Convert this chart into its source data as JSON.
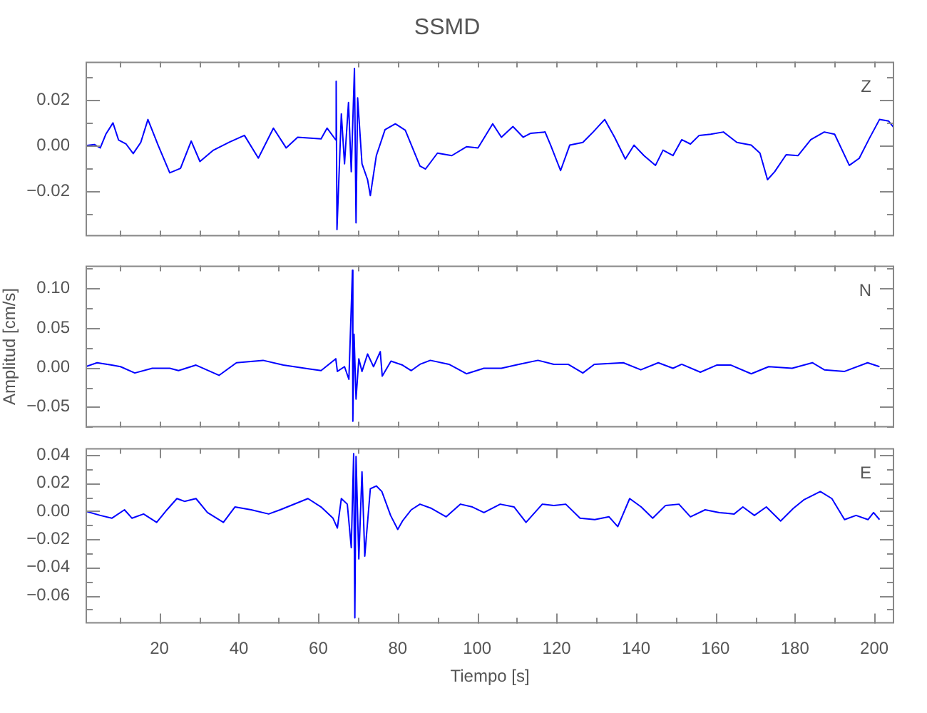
{
  "chart_data": [
    {
      "type": "line",
      "title": "SSMD",
      "annotations": [
        "Z"
      ],
      "tick_labels": "y",
      "x": [
        1.4,
        3.6,
        5.1,
        6.5,
        8.3,
        9.7,
        11.6,
        13.4,
        15.3,
        17.1,
        19.7,
        22.6,
        25.3,
        28.0,
        30.2,
        33.6,
        37.6,
        41.4,
        44.9,
        48.7,
        51.9,
        54.8,
        60.7,
        62.2,
        64.4,
        64.5,
        64.7,
        65.8,
        66.6,
        67.6,
        68.3,
        69.1,
        69.5,
        69.9,
        71.0,
        72.4,
        73.1,
        74.6,
        76.8,
        79.4,
        81.9,
        85.6,
        87.0,
        90.0,
        93.6,
        97.3,
        100.2,
        103.9,
        106.1,
        109.0,
        111.6,
        113.4,
        117.1,
        118.5,
        121.0,
        123.3,
        126.6,
        129.2,
        132.1,
        134.6,
        137.3,
        139.5,
        142.0,
        144.9,
        146.8,
        149.3,
        151.5,
        153.7,
        155.9,
        158.8,
        162.0,
        165.4,
        169.0,
        171.2,
        173.1,
        174.9,
        177.8,
        180.8,
        184.0,
        187.4,
        190.0,
        193.7,
        196.2,
        198.7,
        201.3,
        203.6,
        205.0
      ],
      "series": [
        {
          "color": "#0000ff",
          "values": [
            0.0,
            0.0005,
            -0.001,
            0.005,
            0.01,
            0.0025,
            0.0007,
            -0.0035,
            0.0014,
            0.0115,
            0.0,
            -0.012,
            -0.01,
            0.002,
            -0.007,
            -0.002,
            0.0015,
            0.0045,
            -0.0055,
            0.0077,
            -0.001,
            0.0037,
            0.003,
            0.0077,
            0.0025,
            0.0283,
            -0.037,
            0.014,
            -0.008,
            0.019,
            -0.0115,
            0.034,
            -0.034,
            0.021,
            -0.008,
            -0.015,
            -0.022,
            -0.0045,
            0.007,
            0.0096,
            0.0068,
            -0.009,
            -0.0103,
            -0.0033,
            -0.0044,
            -0.0005,
            -0.001,
            0.0096,
            0.0037,
            0.0084,
            0.0037,
            0.0054,
            0.006,
            0.0002,
            -0.011,
            0.0002,
            0.0014,
            0.006,
            0.0115,
            0.0037,
            -0.0059,
            0.0002,
            -0.0044,
            -0.0087,
            -0.002,
            -0.0044,
            0.0026,
            0.0007,
            0.0045,
            0.005,
            0.006,
            0.0014,
            0.0002,
            -0.0033,
            -0.015,
            -0.0115,
            -0.004,
            -0.0044,
            0.0026,
            0.006,
            0.005,
            -0.0087,
            -0.0056,
            0.003,
            0.0115,
            0.0108,
            0.0077
          ]
        }
      ],
      "xlim": [
        1.4,
        205
      ],
      "xticks": [
        {
          "value": 10,
          "label": null
        },
        {
          "value": 20,
          "label": null
        },
        {
          "value": 30,
          "label": null
        },
        {
          "value": 40,
          "label": null
        },
        {
          "value": 50,
          "label": null
        },
        {
          "value": 60,
          "label": null
        },
        {
          "value": 70,
          "label": null
        },
        {
          "value": 80,
          "label": null
        },
        {
          "value": 90,
          "label": null
        },
        {
          "value": 100,
          "label": null
        },
        {
          "value": 110,
          "label": null
        },
        {
          "value": 120,
          "label": null
        },
        {
          "value": 130,
          "label": null
        },
        {
          "value": 140,
          "label": null
        },
        {
          "value": 150,
          "label": null
        },
        {
          "value": 160,
          "label": null
        },
        {
          "value": 170,
          "label": null
        },
        {
          "value": 180,
          "label": null
        },
        {
          "value": 190,
          "label": null
        },
        {
          "value": 200,
          "label": null
        }
      ],
      "ylim": [
        -0.04,
        0.037
      ],
      "yticks": [
        {
          "value": -0.03,
          "label": null
        },
        {
          "value": -0.02,
          "label": "−0.02"
        },
        {
          "value": -0.01,
          "label": null
        },
        {
          "value": 0,
          "label": "0.00"
        },
        {
          "value": 0.01,
          "label": null
        },
        {
          "value": 0.02,
          "label": "0.02"
        },
        {
          "value": 0.03,
          "label": null
        }
      ]
    },
    {
      "type": "line",
      "ylabel": "Amplitud [cm/s]",
      "annotations": [
        "N"
      ],
      "tick_labels": "y",
      "x": [
        1.4,
        4.3,
        8.0,
        10.2,
        13.8,
        18.2,
        22.6,
        24.8,
        29.2,
        35.0,
        39.4,
        46.1,
        51.2,
        57.8,
        60.7,
        64.4,
        64.8,
        66.6,
        67.7,
        68.6,
        68.7,
        69.0,
        69.5,
        70.2,
        71.0,
        72.4,
        73.9,
        75.6,
        76.1,
        78.3,
        81.2,
        83.4,
        85.6,
        88.2,
        92.9,
        97.3,
        101.7,
        106.1,
        110.5,
        115.3,
        119.3,
        122.9,
        126.6,
        129.5,
        136.8,
        141.2,
        145.6,
        149.3,
        151.5,
        156.2,
        160.3,
        163.9,
        169.0,
        173.4,
        179.3,
        184.4,
        187.4,
        192.5,
        198.3,
        201.3
      ],
      "series": [
        {
          "color": "#0000ff",
          "values": [
            0.001,
            0.006,
            0.003,
            0.001,
            -0.007,
            -0.001,
            -0.001,
            -0.004,
            0.003,
            -0.01,
            0.006,
            0.009,
            0.003,
            -0.002,
            -0.004,
            0.011,
            -0.005,
            0.001,
            -0.015,
            0.123,
            -0.068,
            0.042,
            -0.04,
            0.011,
            -0.005,
            0.017,
            0.001,
            0.02,
            -0.011,
            0.008,
            0.003,
            -0.004,
            0.004,
            0.009,
            0.004,
            -0.008,
            -0.001,
            -0.001,
            0.004,
            0.009,
            0.004,
            0.004,
            -0.007,
            0.004,
            0.006,
            -0.003,
            0.006,
            -0.001,
            0.004,
            -0.006,
            0.003,
            0.003,
            -0.008,
            0.001,
            -0.001,
            0.006,
            -0.003,
            -0.005,
            0.006,
            0.001
          ]
        }
      ],
      "xlim": [
        1.4,
        205
      ],
      "xticks": [
        {
          "value": 10,
          "label": null
        },
        {
          "value": 20,
          "label": null
        },
        {
          "value": 30,
          "label": null
        },
        {
          "value": 40,
          "label": null
        },
        {
          "value": 50,
          "label": null
        },
        {
          "value": 60,
          "label": null
        },
        {
          "value": 70,
          "label": null
        },
        {
          "value": 80,
          "label": null
        },
        {
          "value": 90,
          "label": null
        },
        {
          "value": 100,
          "label": null
        },
        {
          "value": 110,
          "label": null
        },
        {
          "value": 120,
          "label": null
        },
        {
          "value": 130,
          "label": null
        },
        {
          "value": 140,
          "label": null
        },
        {
          "value": 150,
          "label": null
        },
        {
          "value": 160,
          "label": null
        },
        {
          "value": 170,
          "label": null
        },
        {
          "value": 180,
          "label": null
        },
        {
          "value": 190,
          "label": null
        },
        {
          "value": 200,
          "label": null
        }
      ],
      "ylim": [
        -0.076,
        0.129
      ],
      "yticks": [
        {
          "value": -0.075,
          "label": null
        },
        {
          "value": -0.05,
          "label": "−0.05"
        },
        {
          "value": -0.025,
          "label": null
        },
        {
          "value": 0,
          "label": "0.00"
        },
        {
          "value": 0.025,
          "label": null
        },
        {
          "value": 0.05,
          "label": "0.05"
        },
        {
          "value": 0.075,
          "label": null
        },
        {
          "value": 0.1,
          "label": "0.10"
        },
        {
          "value": 0.125,
          "label": null
        }
      ]
    },
    {
      "type": "line",
      "xlabel": "Tiempo [s]",
      "annotations": [
        "E"
      ],
      "x": [
        1.4,
        5.1,
        8.0,
        11.2,
        13.1,
        16.0,
        19.3,
        21.9,
        24.4,
        26.3,
        29.2,
        32.1,
        36.1,
        39.0,
        43.1,
        47.5,
        50.4,
        57.4,
        60.7,
        63.7,
        64.8,
        65.8,
        67.3,
        68.3,
        68.9,
        69.2,
        69.5,
        70.2,
        71.0,
        71.7,
        73.1,
        74.6,
        76.0,
        78.2,
        80.0,
        81.2,
        83.4,
        85.6,
        88.5,
        92.2,
        95.8,
        98.8,
        101.7,
        105.8,
        109.3,
        112.3,
        116.4,
        119.3,
        122.3,
        125.9,
        129.6,
        133.2,
        135.4,
        138.4,
        141.3,
        144.2,
        147.4,
        150.8,
        153.7,
        157.4,
        161.0,
        164.7,
        166.9,
        169.8,
        172.8,
        176.4,
        179.6,
        182.2,
        186.4,
        189.3,
        192.5,
        195.4,
        198.4,
        199.8,
        201.3
      ],
      "series": [
        {
          "color": "#0000ff",
          "values": [
            0.0,
            -0.003,
            -0.005,
            0.001,
            -0.005,
            -0.002,
            -0.008,
            0.001,
            0.009,
            0.007,
            0.009,
            -0.001,
            -0.008,
            0.003,
            0.001,
            -0.002,
            0.001,
            0.009,
            0.003,
            -0.005,
            -0.012,
            0.009,
            0.005,
            -0.026,
            0.041,
            -0.076,
            0.039,
            -0.034,
            0.028,
            -0.032,
            0.016,
            0.018,
            0.014,
            -0.003,
            -0.013,
            -0.007,
            0.001,
            0.005,
            0.002,
            -0.004,
            0.005,
            0.003,
            -0.001,
            0.005,
            0.003,
            -0.008,
            0.005,
            0.004,
            0.005,
            -0.005,
            -0.006,
            -0.004,
            -0.011,
            0.009,
            0.003,
            -0.005,
            0.004,
            0.005,
            -0.004,
            0.001,
            -0.001,
            -0.002,
            0.003,
            -0.003,
            0.003,
            -0.007,
            0.002,
            0.008,
            0.014,
            0.009,
            -0.006,
            -0.003,
            -0.006,
            -0.001,
            -0.006
          ]
        }
      ],
      "xlim": [
        1.4,
        205
      ],
      "xticks": [
        {
          "value": 10,
          "label": null
        },
        20,
        {
          "value": 30,
          "label": null
        },
        40,
        {
          "value": 50,
          "label": null
        },
        60,
        {
          "value": 70,
          "label": null
        },
        80,
        {
          "value": 90,
          "label": null
        },
        100,
        {
          "value": 110,
          "label": null
        },
        120,
        {
          "value": 130,
          "label": null
        },
        140,
        {
          "value": 150,
          "label": null
        },
        160,
        {
          "value": 170,
          "label": null
        },
        180,
        {
          "value": 190,
          "label": null
        },
        200
      ],
      "ylim": [
        -0.08,
        0.045
      ],
      "yticks": [
        {
          "value": -0.07,
          "label": null
        },
        {
          "value": -0.06,
          "label": "−0.06"
        },
        {
          "value": -0.05,
          "label": null
        },
        {
          "value": -0.04,
          "label": "−0.04"
        },
        {
          "value": -0.03,
          "label": null
        },
        {
          "value": -0.02,
          "label": "−0.02"
        },
        {
          "value": -0.01,
          "label": null
        },
        {
          "value": 0,
          "label": "0.00"
        },
        {
          "value": 0.01,
          "label": null
        },
        {
          "value": 0.02,
          "label": "0.02"
        },
        {
          "value": 0.03,
          "label": null
        },
        {
          "value": 0.04,
          "label": "0.04"
        }
      ]
    }
  ]
}
